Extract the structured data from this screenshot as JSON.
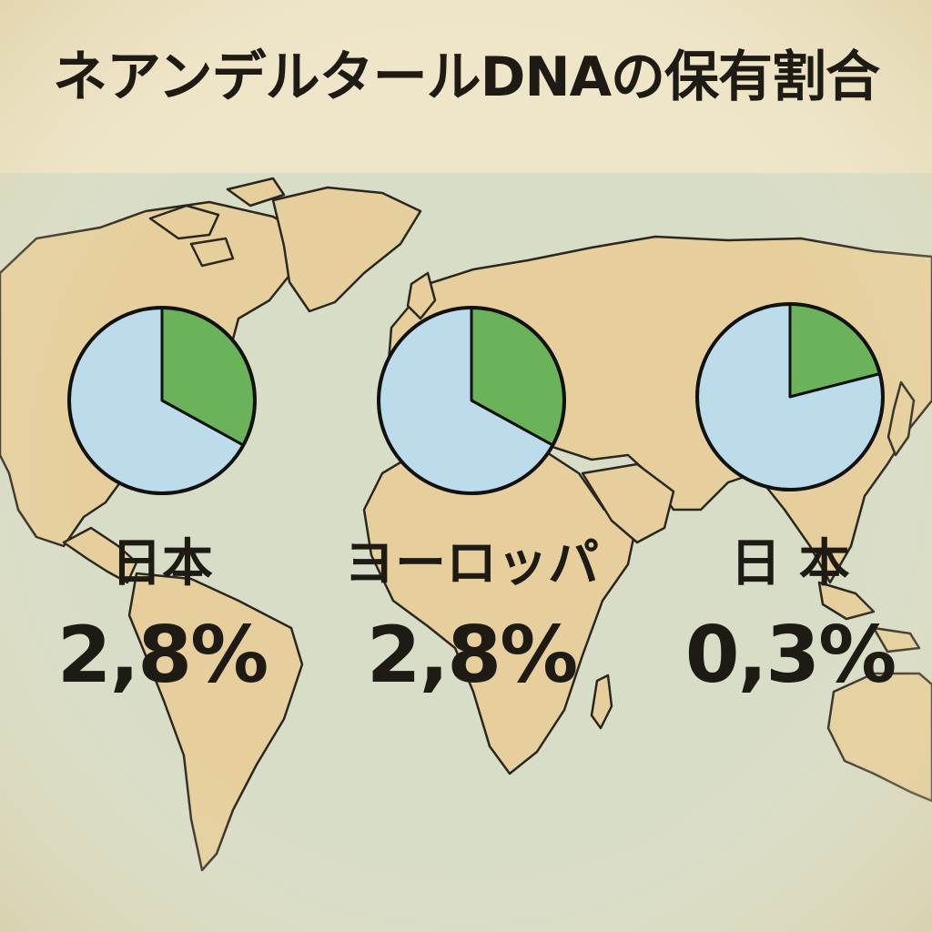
{
  "title": "ネアンデルタールDNAの保有割合",
  "colors": {
    "paper": "#efe6c9",
    "ocean": "#c9d8cf",
    "land": "#e6cf9c",
    "coast": "#2a2620",
    "slice_green": "#6bb35a",
    "slice_blue": "#bcdcec",
    "outline": "#111111",
    "text": "#1e1a14"
  },
  "chart_data": [
    {
      "type": "pie",
      "label": "日本",
      "value_text": "2,8%",
      "slices": [
        {
          "name": "green",
          "value": 0.33,
          "color": "#6bb35a"
        },
        {
          "name": "blue",
          "value": 0.67,
          "color": "#bcdcec"
        }
      ],
      "start_angle_deg": 0
    },
    {
      "type": "pie",
      "label": "ヨーロッパ",
      "value_text": "2,8%",
      "slices": [
        {
          "name": "green",
          "value": 0.33,
          "color": "#6bb35a"
        },
        {
          "name": "blue",
          "value": 0.67,
          "color": "#bcdcec"
        }
      ],
      "start_angle_deg": 0
    },
    {
      "type": "pie",
      "label": "日 本",
      "value_text": "0,3%",
      "slices": [
        {
          "name": "green",
          "value": 0.21,
          "color": "#6bb35a"
        },
        {
          "name": "blue",
          "value": 0.79,
          "color": "#bcdcec"
        }
      ],
      "start_angle_deg": 0
    }
  ]
}
